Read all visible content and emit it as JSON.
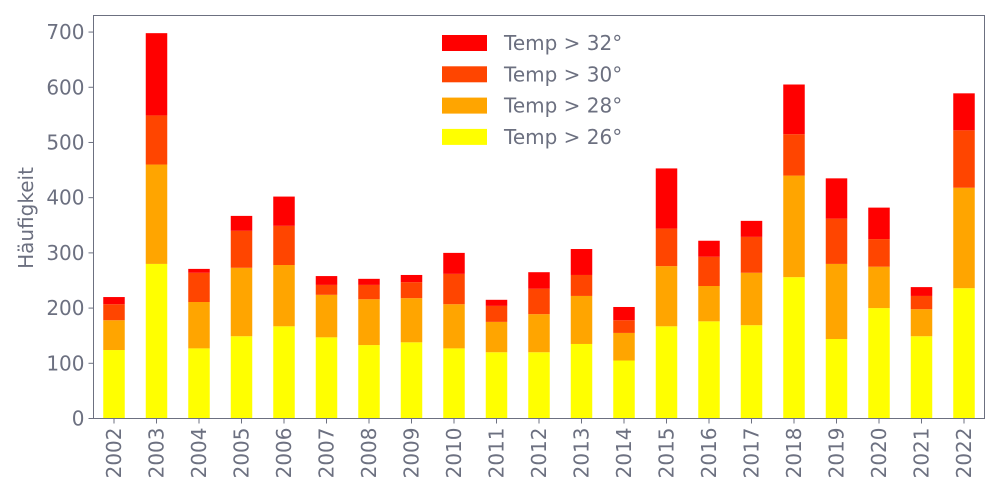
{
  "chart_data": {
    "type": "bar",
    "stacked": true,
    "title": "",
    "xlabel": "",
    "ylabel": "Häufigkeit",
    "ylim": [
      0,
      730
    ],
    "yticks": [
      0,
      100,
      200,
      300,
      400,
      500,
      600,
      700
    ],
    "grid": false,
    "legend_position": "top-center",
    "categories": [
      "2002",
      "2003",
      "2004",
      "2005",
      "2006",
      "2007",
      "2008",
      "2009",
      "2010",
      "2011",
      "2012",
      "2013",
      "2014",
      "2015",
      "2016",
      "2017",
      "2018",
      "2019",
      "2020",
      "2021",
      "2022"
    ],
    "series": [
      {
        "name": "Temp > 26°",
        "color": "#ffff00",
        "values": [
          124,
          280,
          127,
          149,
          167,
          147,
          133,
          138,
          127,
          120,
          120,
          135,
          105,
          167,
          176,
          169,
          256,
          144,
          200,
          149,
          236
        ]
      },
      {
        "name": "Temp > 28°",
        "color": "#ffa500",
        "values": [
          54,
          180,
          84,
          124,
          111,
          77,
          83,
          80,
          80,
          55,
          69,
          87,
          50,
          109,
          64,
          95,
          184,
          136,
          75,
          49,
          182
        ]
      },
      {
        "name": "Temp > 30°",
        "color": "#ff4500",
        "values": [
          29,
          89,
          53,
          67,
          71,
          18,
          26,
          29,
          55,
          29,
          46,
          38,
          23,
          68,
          53,
          65,
          75,
          82,
          50,
          24,
          104
        ]
      },
      {
        "name": "Temp > 32°",
        "color": "#ff0000",
        "values": [
          13,
          149,
          7,
          27,
          53,
          16,
          11,
          13,
          38,
          11,
          30,
          47,
          24,
          109,
          29,
          29,
          90,
          73,
          57,
          16,
          67
        ]
      }
    ]
  }
}
